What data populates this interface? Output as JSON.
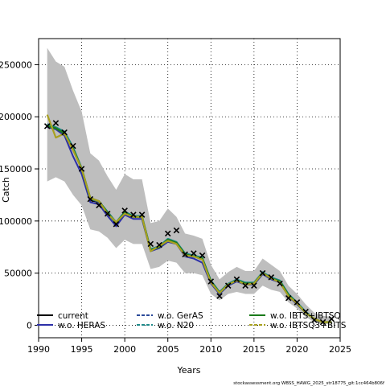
{
  "chart_data": {
    "type": "line",
    "xlabel": "Years",
    "ylabel": "Catch",
    "xlim": [
      1990,
      2025
    ],
    "ylim": [
      -12000,
      275000
    ],
    "xticks": [
      1990,
      1995,
      2000,
      2005,
      2010,
      2015,
      2020,
      2025
    ],
    "yticks": [
      0,
      50000,
      100000,
      150000,
      200000,
      250000
    ],
    "grid": true,
    "legend_position": "bottom",
    "x": [
      1991,
      1992,
      1993,
      1994,
      1995,
      1996,
      1997,
      1998,
      1999,
      2000,
      2001,
      2002,
      2003,
      2004,
      2005,
      2006,
      2007,
      2008,
      2009,
      2010,
      2011,
      2012,
      2013,
      2014,
      2015,
      2016,
      2017,
      2018,
      2019,
      2020,
      2021,
      2022,
      2023,
      2024
    ],
    "band": {
      "upper": [
        266000,
        253000,
        248000,
        225000,
        205000,
        165000,
        158000,
        143000,
        130000,
        145000,
        140000,
        140000,
        98000,
        100000,
        112000,
        104000,
        88000,
        86000,
        83000,
        58000,
        44000,
        51000,
        56000,
        52000,
        52000,
        64000,
        58000,
        52000,
        38000,
        30000,
        20000,
        12000,
        9000,
        8000
      ],
      "lower": [
        138000,
        142000,
        138000,
        125000,
        115000,
        92000,
        90000,
        84000,
        74000,
        82000,
        78000,
        78000,
        54000,
        56000,
        62000,
        60000,
        50000,
        50000,
        48000,
        30000,
        24000,
        30000,
        32000,
        30000,
        30000,
        38000,
        34000,
        32000,
        22000,
        16000,
        8000,
        3000,
        1000,
        1000
      ]
    },
    "series": [
      {
        "name": "current",
        "values": [
          192000,
          190000,
          185000,
          170000,
          150000,
          120000,
          118000,
          108000,
          98000,
          108000,
          104000,
          104000,
          72000,
          75000,
          82000,
          79000,
          68000,
          66000,
          64000,
          42000,
          31000,
          39000,
          43000,
          40000,
          40000,
          50000,
          45000,
          42000,
          29000,
          21000,
          12000,
          6000,
          3000,
          3000
        ]
      },
      {
        "name": "w.o. HERAS",
        "values": [
          190000,
          188000,
          182000,
          162000,
          145000,
          118000,
          116000,
          105000,
          95000,
          106000,
          102000,
          102000,
          71000,
          74000,
          80000,
          78000,
          66000,
          64000,
          60000,
          40000,
          30000,
          38000,
          42000,
          39000,
          39000,
          49000,
          44000,
          41000,
          28000,
          20000,
          12000,
          6000,
          3000,
          3000
        ]
      },
      {
        "name": "w.o. GerAS",
        "values": [
          192000,
          189000,
          184000,
          170000,
          150000,
          121000,
          118000,
          108000,
          98000,
          108000,
          104000,
          104000,
          72000,
          75000,
          82000,
          79000,
          68000,
          66000,
          64000,
          42000,
          31000,
          39000,
          43000,
          40000,
          40000,
          50000,
          45000,
          42000,
          29000,
          21000,
          12000,
          6000,
          3000,
          3000
        ]
      },
      {
        "name": "w.o. N20",
        "values": [
          193000,
          190000,
          186000,
          171000,
          151000,
          121000,
          119000,
          109000,
          99000,
          109000,
          105000,
          105000,
          73000,
          76000,
          83000,
          80000,
          69000,
          67000,
          65000,
          43000,
          32000,
          40000,
          44000,
          41000,
          41000,
          51000,
          46000,
          43000,
          30000,
          22000,
          13000,
          6000,
          3000,
          3000
        ]
      },
      {
        "name": "w.o. IBTS+IBTSQ",
        "values": [
          191000,
          189000,
          184000,
          169000,
          150000,
          122000,
          119000,
          108000,
          98000,
          108000,
          104000,
          104000,
          72000,
          75000,
          82000,
          79000,
          68000,
          66000,
          64000,
          42000,
          31000,
          39000,
          43000,
          40000,
          40000,
          50000,
          45000,
          42000,
          29000,
          21000,
          12000,
          6000,
          3000,
          3000
        ]
      },
      {
        "name": "w.o. IBTSQ3+BITS",
        "values": [
          202000,
          180000,
          184000,
          168000,
          150000,
          122000,
          119000,
          107000,
          99000,
          107000,
          104000,
          104000,
          71000,
          76000,
          81000,
          78000,
          67000,
          66000,
          63000,
          41000,
          31000,
          39000,
          43000,
          39000,
          40000,
          50000,
          45000,
          41000,
          28000,
          21000,
          12000,
          6000,
          3000,
          3000
        ]
      }
    ],
    "observed": {
      "name": "observed catch",
      "values": [
        191000,
        194000,
        185000,
        172000,
        150000,
        121000,
        115000,
        107000,
        97000,
        110000,
        106000,
        106000,
        78000,
        77000,
        88000,
        91000,
        68000,
        69000,
        67000,
        42000,
        28000,
        38000,
        44000,
        38000,
        38000,
        50000,
        46000,
        40000,
        26000,
        22000,
        13000,
        5000,
        3000,
        6000
      ]
    },
    "colors": {
      "band": "#bebebe",
      "current": "#000000",
      "w.o. HERAS": "#2c2fa8",
      "w.o. GerAS": "#2b4a99",
      "w.o. N20": "#1f8a8a",
      "w.o. IBTS+IBTSQ": "#1a7a1a",
      "w.o. IBTSQ3+BITS": "#a8a020"
    },
    "legend": {
      "col1": [
        "current",
        "w.o. HERAS"
      ],
      "col2": [
        "w.o. GerAS",
        "w.o. N20"
      ],
      "col3": [
        "w.o. IBTS+IBTSQ",
        "w.o. IBTSQ3+BITS"
      ]
    }
  },
  "footer_text": "stockassessment.org WBSS_HAWG_2025_str18775_git:1cc464b806f"
}
